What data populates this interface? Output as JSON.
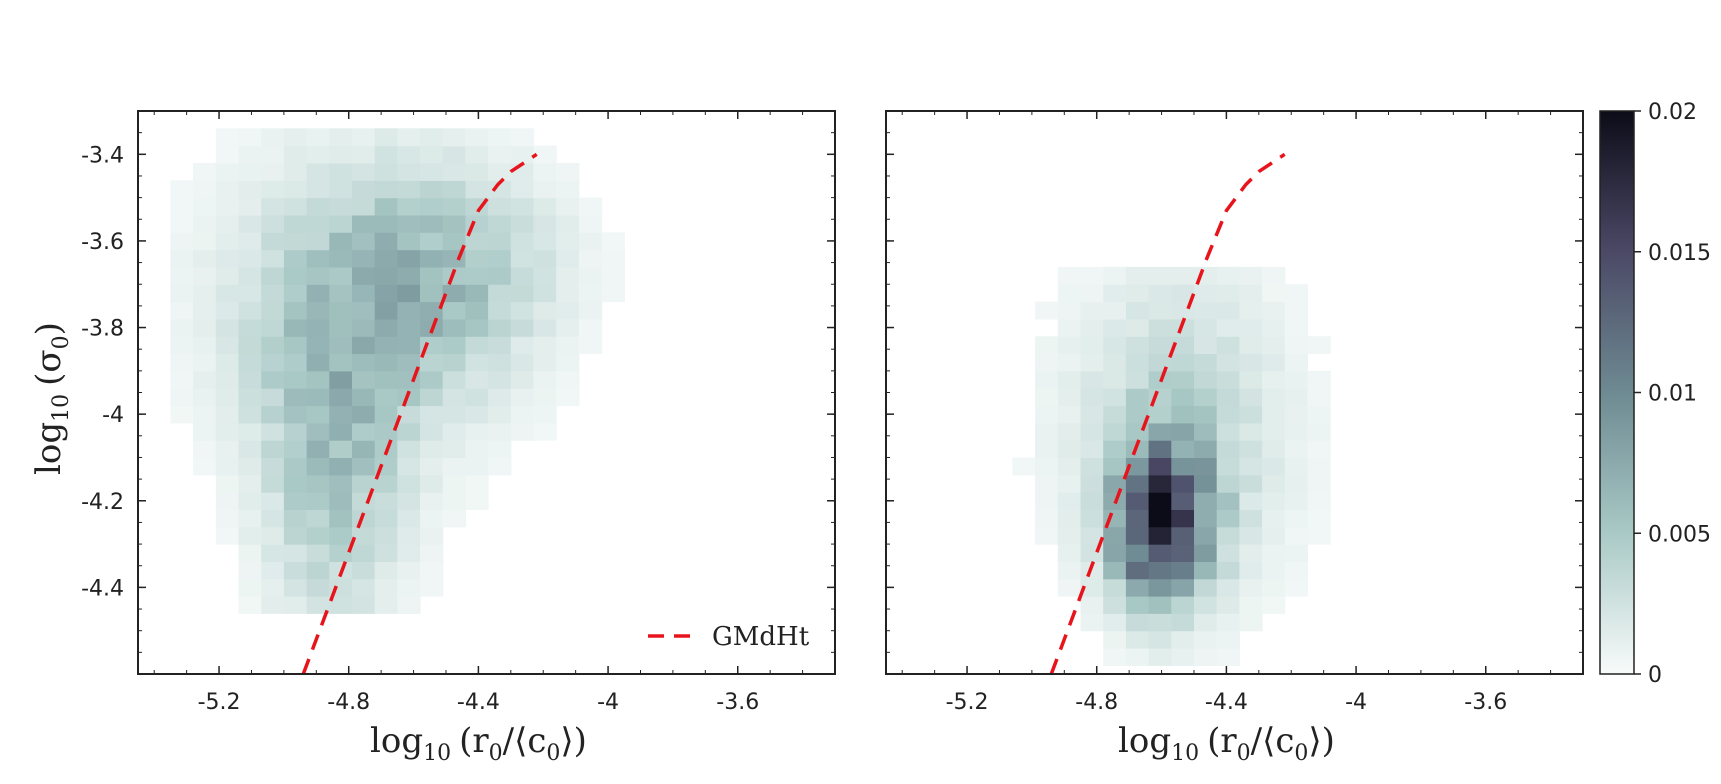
{
  "colors": {
    "curve": "#e8141c",
    "cmap_low": "#f7fbfa",
    "cmap_mid": "#9fc2c0",
    "cmap_high": "#0c0c18",
    "frame": "#222222"
  },
  "chart_data": [
    {
      "type": "heatmap",
      "panel": "left",
      "xlabel": "log10 (r0/⟨c0⟩)",
      "ylabel": "log10 (σ0)",
      "xlim": [
        -5.45,
        -3.3
      ],
      "ylim": [
        -4.6,
        -3.3
      ],
      "x_ticks": [
        -5.2,
        -4.8,
        -4.4,
        -4,
        -3.6
      ],
      "x_tick_labels": [
        "-5.2",
        "-4.8",
        "-4.4",
        "-4",
        "-3.6"
      ],
      "y_ticks": [
        -3.4,
        -3.6,
        -3.8,
        -4,
        -4.2,
        -4.4
      ],
      "y_tick_labels": [
        "-3.4",
        "-3.6",
        "-3.8",
        "-4",
        "-4.2",
        "-4.4"
      ],
      "bin_width_x": 0.07,
      "bin_height_y": 0.04,
      "density_blobs": [
        {
          "x": -4.75,
          "y": -3.75,
          "sx": 0.28,
          "sy": 0.22,
          "amp": 0.0055
        },
        {
          "x": -4.85,
          "y": -4.15,
          "sx": 0.15,
          "sy": 0.25,
          "amp": 0.0045
        },
        {
          "x": -4.45,
          "y": -3.65,
          "sx": 0.22,
          "sy": 0.15,
          "amp": 0.003
        }
      ],
      "region": {
        "x_min": -5.35,
        "x_max": -3.75,
        "y_min": -4.46,
        "y_max": -3.36
      },
      "legend": {
        "label": "GMdHt",
        "location": "lower-right"
      },
      "curve": {
        "name": "GMdHt",
        "style": "dashed",
        "x": [
          -4.94,
          -4.88,
          -4.82,
          -4.76,
          -4.7,
          -4.64,
          -4.58,
          -4.52,
          -4.46,
          -4.4,
          -4.34,
          -4.3,
          -4.26,
          -4.22
        ],
        "y": [
          -4.6,
          -4.48,
          -4.36,
          -4.24,
          -4.12,
          -4.0,
          -3.88,
          -3.76,
          -3.64,
          -3.53,
          -3.47,
          -3.44,
          -3.42,
          -3.4
        ]
      }
    },
    {
      "type": "heatmap",
      "panel": "right",
      "xlabel": "log10 (r0/⟨c0⟩)",
      "xlim": [
        -5.45,
        -3.3
      ],
      "ylim": [
        -4.6,
        -3.3
      ],
      "x_ticks": [
        -5.2,
        -4.8,
        -4.4,
        -4,
        -3.6
      ],
      "x_tick_labels": [
        "-5.2",
        "-4.8",
        "-4.4",
        "-4",
        "-3.6"
      ],
      "bin_width_x": 0.07,
      "bin_height_y": 0.04,
      "density_blobs": [
        {
          "x": -4.6,
          "y": -4.25,
          "sx": 0.1,
          "sy": 0.12,
          "amp": 0.017
        },
        {
          "x": -4.55,
          "y": -4.05,
          "sx": 0.22,
          "sy": 0.25,
          "amp": 0.004
        }
      ],
      "region": {
        "x_min": -5.2,
        "x_max": -3.7,
        "y_min": -4.58,
        "y_max": -3.66
      },
      "curve": {
        "name": "GMdHt",
        "style": "dashed",
        "x": [
          -4.94,
          -4.88,
          -4.82,
          -4.76,
          -4.7,
          -4.64,
          -4.58,
          -4.52,
          -4.46,
          -4.4,
          -4.34,
          -4.3,
          -4.26,
          -4.22
        ],
        "y": [
          -4.6,
          -4.48,
          -4.36,
          -4.24,
          -4.12,
          -4.0,
          -3.88,
          -3.76,
          -3.64,
          -3.53,
          -3.47,
          -3.44,
          -3.42,
          -3.4
        ]
      }
    }
  ],
  "colorbar": {
    "vmin": 0,
    "vmax": 0.02,
    "ticks": [
      0,
      0.005,
      0.01,
      0.015,
      0.02
    ],
    "tick_labels": [
      "0",
      "0.005",
      "0.01",
      "0.015",
      "0.02"
    ]
  },
  "labels": {
    "x_left": {
      "base": "log",
      "sub": "10",
      "expr": "(r",
      "sub2": "0",
      "tail": "/⟨c",
      "sub3": "0",
      "end": "⟩)"
    },
    "x_right": {
      "base": "log",
      "sub": "10",
      "expr": "(r",
      "sub2": "0",
      "tail": "/⟨c",
      "sub3": "0",
      "end": "⟩)"
    },
    "y_left": {
      "base": "log",
      "sub": "10",
      "expr": "(σ",
      "sub2": "0",
      "end": ")"
    },
    "legend": "GMdHt"
  }
}
